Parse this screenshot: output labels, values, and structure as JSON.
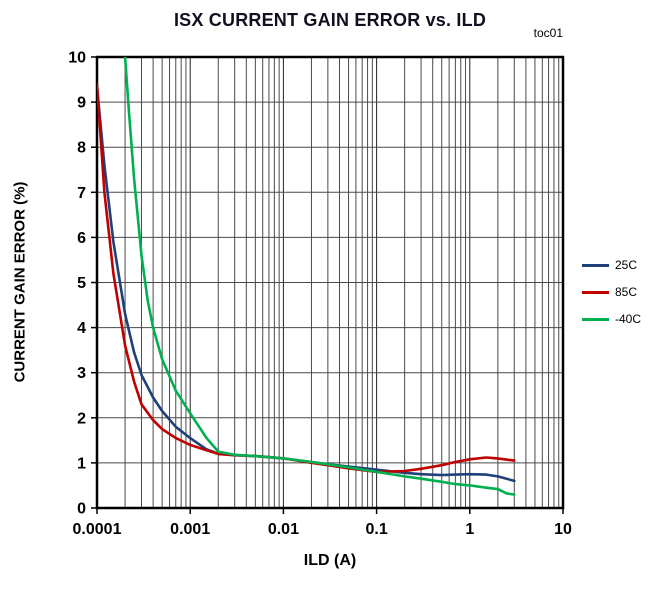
{
  "chart_data": {
    "type": "line",
    "title": "ISX CURRENT GAIN ERROR vs. ILD",
    "annotation": "toc01",
    "xlabel": "ILD (A)",
    "ylabel": "CURRENT GAIN ERROR  (%)",
    "x_scale": "log",
    "y_scale": "linear",
    "xlim": [
      0.0001,
      10
    ],
    "ylim": [
      0,
      10
    ],
    "x_tick_labels": [
      "0.0001",
      "0.001",
      "0.01",
      "0.1",
      "1",
      "10"
    ],
    "x_ticks": [
      0.0001,
      0.001,
      0.01,
      0.1,
      1,
      10
    ],
    "y_ticks": [
      0,
      1,
      2,
      3,
      4,
      5,
      6,
      7,
      8,
      9,
      10
    ],
    "grid": "log minor vertical gridlines each decade; horizontal gridlines at each integer",
    "legend_position": "right-outside",
    "series": [
      {
        "name": "25C",
        "color": "#1f4079",
        "points": [
          [
            0.0001,
            9.35
          ],
          [
            0.00012,
            7.6
          ],
          [
            0.00015,
            5.9
          ],
          [
            0.0002,
            4.3
          ],
          [
            0.00025,
            3.45
          ],
          [
            0.0003,
            2.95
          ],
          [
            0.0004,
            2.45
          ],
          [
            0.0005,
            2.15
          ],
          [
            0.0007,
            1.8
          ],
          [
            0.001,
            1.55
          ],
          [
            0.0015,
            1.3
          ],
          [
            0.002,
            1.2
          ],
          [
            0.003,
            1.17
          ],
          [
            0.005,
            1.15
          ],
          [
            0.007,
            1.13
          ],
          [
            0.01,
            1.1
          ],
          [
            0.02,
            1.02
          ],
          [
            0.03,
            0.97
          ],
          [
            0.05,
            0.92
          ],
          [
            0.1,
            0.85
          ],
          [
            0.2,
            0.78
          ],
          [
            0.3,
            0.75
          ],
          [
            0.5,
            0.73
          ],
          [
            0.7,
            0.74
          ],
          [
            1,
            0.75
          ],
          [
            1.5,
            0.74
          ],
          [
            2,
            0.7
          ],
          [
            3,
            0.6
          ]
        ]
      },
      {
        "name": "85C",
        "color": "#c00000",
        "points": [
          [
            0.0001,
            9.4
          ],
          [
            0.00012,
            7.0
          ],
          [
            0.00015,
            5.2
          ],
          [
            0.0002,
            3.6
          ],
          [
            0.00025,
            2.8
          ],
          [
            0.0003,
            2.3
          ],
          [
            0.0004,
            1.95
          ],
          [
            0.0005,
            1.75
          ],
          [
            0.0007,
            1.55
          ],
          [
            0.001,
            1.4
          ],
          [
            0.0015,
            1.28
          ],
          [
            0.002,
            1.2
          ],
          [
            0.003,
            1.17
          ],
          [
            0.005,
            1.15
          ],
          [
            0.01,
            1.1
          ],
          [
            0.02,
            1.0
          ],
          [
            0.03,
            0.95
          ],
          [
            0.05,
            0.88
          ],
          [
            0.1,
            0.8
          ],
          [
            0.2,
            0.82
          ],
          [
            0.3,
            0.87
          ],
          [
            0.5,
            0.95
          ],
          [
            0.7,
            1.02
          ],
          [
            1,
            1.08
          ],
          [
            1.5,
            1.12
          ],
          [
            2,
            1.1
          ],
          [
            3,
            1.05
          ]
        ]
      },
      {
        "name": "-40C",
        "color": "#00b050",
        "points": [
          [
            0.0002,
            10.0
          ],
          [
            0.00022,
            8.8
          ],
          [
            0.00025,
            7.3
          ],
          [
            0.0003,
            5.6
          ],
          [
            0.00035,
            4.6
          ],
          [
            0.0004,
            4.0
          ],
          [
            0.0005,
            3.3
          ],
          [
            0.0007,
            2.6
          ],
          [
            0.001,
            2.1
          ],
          [
            0.0015,
            1.55
          ],
          [
            0.002,
            1.25
          ],
          [
            0.003,
            1.18
          ],
          [
            0.005,
            1.15
          ],
          [
            0.01,
            1.1
          ],
          [
            0.02,
            1.02
          ],
          [
            0.03,
            0.97
          ],
          [
            0.05,
            0.9
          ],
          [
            0.1,
            0.8
          ],
          [
            0.2,
            0.7
          ],
          [
            0.3,
            0.65
          ],
          [
            0.5,
            0.58
          ],
          [
            0.7,
            0.53
          ],
          [
            1,
            0.5
          ],
          [
            1.5,
            0.45
          ],
          [
            2,
            0.42
          ],
          [
            2.5,
            0.32
          ],
          [
            3,
            0.3
          ]
        ]
      }
    ]
  }
}
